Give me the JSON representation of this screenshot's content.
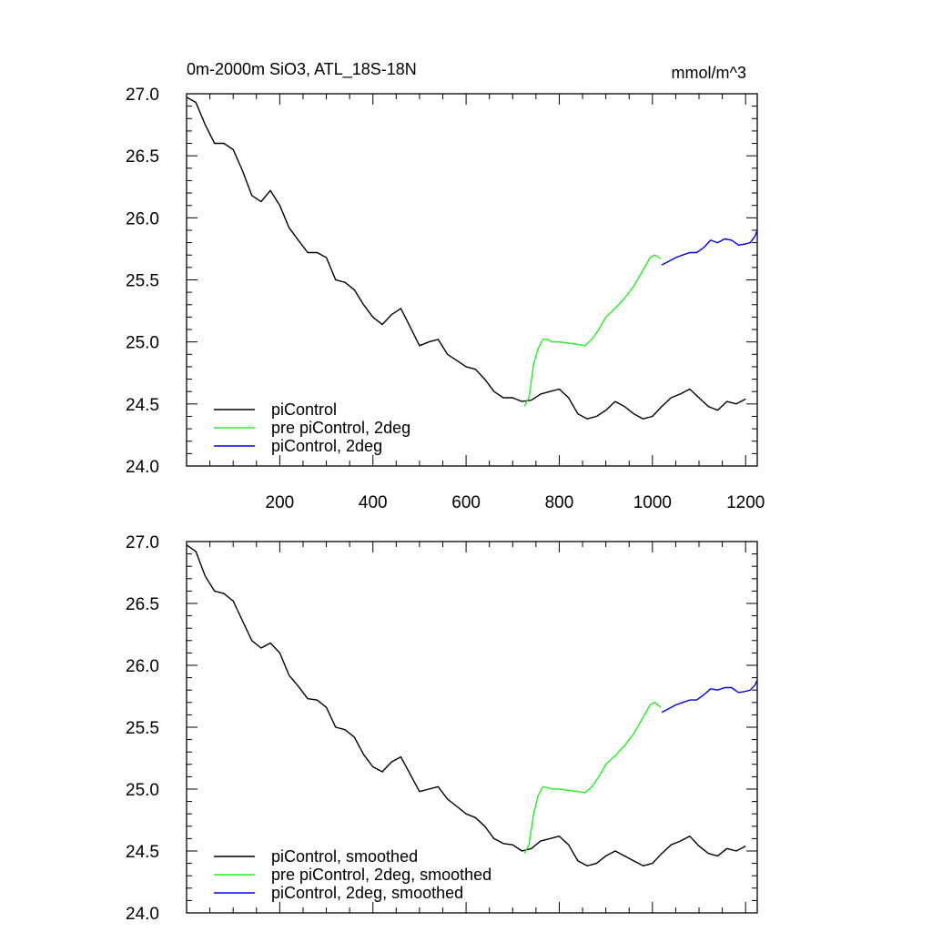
{
  "chart_data": [
    {
      "type": "line",
      "title": "0m-2000m SiO3, ATL_18S-18N",
      "units": "mmol/m^3",
      "xlim": [
        0,
        1225
      ],
      "ylim": [
        24.0,
        27.0
      ],
      "xticks": [
        200,
        400,
        600,
        800,
        1000,
        1200
      ],
      "xtick_labels": [
        "200",
        "400",
        "600",
        "800",
        "1000",
        "1200"
      ],
      "yticks": [
        24.0,
        24.5,
        25.0,
        25.5,
        26.0,
        26.5,
        27.0
      ],
      "ytick_labels": [
        "24.0",
        "24.5",
        "25.0",
        "25.5",
        "26.0",
        "26.5",
        "27.0"
      ],
      "grid": false,
      "legend_position": "bottom-left",
      "series": [
        {
          "name": "piControl",
          "color": "#000000",
          "x": [
            1,
            20,
            40,
            60,
            80,
            100,
            120,
            140,
            160,
            180,
            200,
            220,
            240,
            260,
            280,
            300,
            320,
            340,
            360,
            380,
            400,
            420,
            440,
            460,
            480,
            500,
            520,
            540,
            560,
            580,
            600,
            620,
            640,
            660,
            680,
            700,
            720,
            740,
            760,
            780,
            800,
            820,
            840,
            860,
            880,
            900,
            920,
            940,
            960,
            980,
            1000,
            1020,
            1040,
            1060,
            1080,
            1100,
            1120,
            1140,
            1160,
            1180,
            1200
          ],
          "y": [
            26.97,
            26.93,
            26.75,
            26.6,
            26.6,
            26.55,
            26.38,
            26.18,
            26.13,
            26.22,
            26.1,
            25.92,
            25.82,
            25.72,
            25.72,
            25.68,
            25.5,
            25.48,
            25.42,
            25.3,
            25.2,
            25.14,
            25.22,
            25.27,
            25.12,
            24.97,
            25.0,
            25.02,
            24.9,
            24.85,
            24.8,
            24.78,
            24.7,
            24.6,
            24.55,
            24.55,
            24.52,
            24.53,
            24.58,
            24.6,
            24.62,
            24.55,
            24.42,
            24.38,
            24.4,
            24.45,
            24.52,
            24.48,
            24.42,
            24.38,
            24.4,
            24.48,
            24.55,
            24.58,
            24.62,
            24.55,
            24.48,
            24.45,
            24.52,
            24.5,
            24.54
          ]
        },
        {
          "name": "pre piControl, 2deg",
          "color": "#22ee22",
          "x": [
            725,
            735,
            745,
            755,
            765,
            775,
            785,
            800,
            820,
            840,
            855,
            870,
            885,
            900,
            920,
            940,
            960,
            980,
            995,
            1005,
            1018
          ],
          "y": [
            24.48,
            24.55,
            24.82,
            24.95,
            25.02,
            25.02,
            25.0,
            25.0,
            24.99,
            24.98,
            24.97,
            25.02,
            25.1,
            25.2,
            25.27,
            25.35,
            25.45,
            25.58,
            25.68,
            25.7,
            25.67
          ]
        },
        {
          "name": "piControl, 2deg",
          "color": "#0000ee",
          "x": [
            1020,
            1035,
            1050,
            1065,
            1080,
            1095,
            1110,
            1125,
            1140,
            1155,
            1170,
            1185,
            1200,
            1210,
            1220,
            1225
          ],
          "y": [
            25.62,
            25.65,
            25.68,
            25.7,
            25.72,
            25.72,
            25.76,
            25.82,
            25.8,
            25.83,
            25.82,
            25.78,
            25.79,
            25.8,
            25.85,
            25.9
          ]
        }
      ]
    },
    {
      "type": "line",
      "title": "",
      "xlim": [
        0,
        1225
      ],
      "ylim": [
        24.0,
        27.0
      ],
      "xticks": [
        200,
        400,
        600,
        800,
        1000,
        1200
      ],
      "yticks": [
        24.0,
        24.5,
        25.0,
        25.5,
        26.0,
        26.5,
        27.0
      ],
      "ytick_labels": [
        "24.0",
        "24.5",
        "25.0",
        "25.5",
        "26.0",
        "26.5",
        "27.0"
      ],
      "grid": false,
      "legend_position": "bottom-left",
      "series": [
        {
          "name": "piControl, smoothed",
          "color": "#000000",
          "x": [
            1,
            20,
            40,
            60,
            80,
            100,
            120,
            140,
            160,
            180,
            200,
            220,
            240,
            260,
            280,
            300,
            320,
            340,
            360,
            380,
            400,
            420,
            440,
            460,
            480,
            500,
            520,
            540,
            560,
            580,
            600,
            620,
            640,
            660,
            680,
            700,
            720,
            740,
            760,
            780,
            800,
            820,
            840,
            860,
            880,
            900,
            920,
            940,
            960,
            980,
            1000,
            1020,
            1040,
            1060,
            1080,
            1100,
            1120,
            1140,
            1160,
            1180,
            1200
          ],
          "y": [
            26.97,
            26.92,
            26.72,
            26.6,
            26.58,
            26.52,
            26.36,
            26.2,
            26.14,
            26.18,
            26.1,
            25.92,
            25.83,
            25.73,
            25.72,
            25.66,
            25.5,
            25.48,
            25.42,
            25.28,
            25.18,
            25.14,
            25.22,
            25.26,
            25.12,
            24.98,
            25.0,
            25.02,
            24.92,
            24.86,
            24.8,
            24.77,
            24.7,
            24.6,
            24.56,
            24.55,
            24.5,
            24.52,
            24.58,
            24.6,
            24.62,
            24.55,
            24.42,
            24.38,
            24.4,
            24.46,
            24.5,
            24.46,
            24.42,
            24.38,
            24.4,
            24.48,
            24.55,
            24.58,
            24.62,
            24.54,
            24.48,
            24.46,
            24.52,
            24.5,
            24.54
          ]
        },
        {
          "name": "pre piControl, 2deg, smoothed",
          "color": "#22ee22",
          "x": [
            725,
            735,
            745,
            755,
            765,
            775,
            785,
            800,
            820,
            840,
            855,
            870,
            885,
            900,
            920,
            940,
            960,
            980,
            995,
            1005,
            1018
          ],
          "y": [
            24.48,
            24.55,
            24.8,
            24.95,
            25.02,
            25.01,
            25.0,
            25.0,
            24.99,
            24.98,
            24.97,
            25.02,
            25.1,
            25.2,
            25.27,
            25.35,
            25.45,
            25.58,
            25.68,
            25.7,
            25.66
          ]
        },
        {
          "name": "piControl, 2deg, smoothed",
          "color": "#0000ee",
          "x": [
            1020,
            1035,
            1050,
            1065,
            1080,
            1095,
            1110,
            1125,
            1140,
            1155,
            1170,
            1185,
            1200,
            1210,
            1220,
            1225
          ],
          "y": [
            25.62,
            25.65,
            25.68,
            25.7,
            25.72,
            25.72,
            25.76,
            25.81,
            25.8,
            25.82,
            25.82,
            25.78,
            25.79,
            25.8,
            25.84,
            25.88
          ]
        }
      ]
    }
  ]
}
